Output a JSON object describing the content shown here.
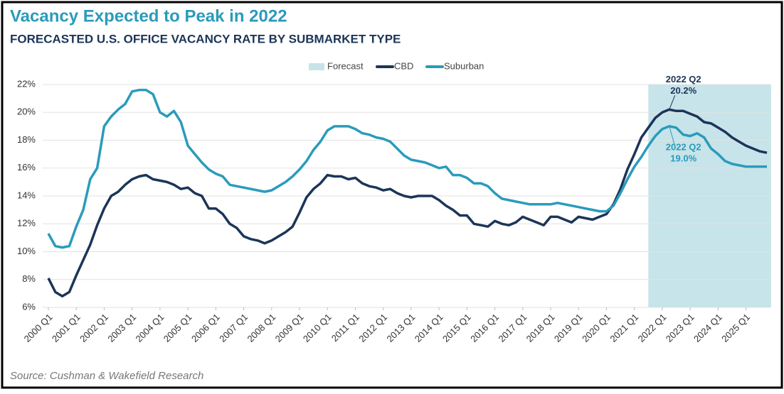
{
  "chart_data": {
    "type": "line",
    "title": "Vacancy Expected to Peak in 2022",
    "subtitle": "FORECASTED U.S. OFFICE VACANCY RATE BY SUBMARKET TYPE",
    "source": "Source: Cushman & Wakefield Research",
    "legend": "top",
    "grid": true,
    "forecast": {
      "name": "Forecast",
      "color": "#c6e4ea",
      "range": [
        2021.5,
        2025.9
      ]
    },
    "x": [
      2000,
      2000.25,
      2000.5,
      2000.75,
      2001,
      2001.25,
      2001.5,
      2001.75,
      2002,
      2002.25,
      2002.5,
      2002.75,
      2003,
      2003.25,
      2003.5,
      2003.75,
      2004,
      2004.25,
      2004.5,
      2004.75,
      2005,
      2005.25,
      2005.5,
      2005.75,
      2006,
      2006.25,
      2006.5,
      2006.75,
      2007,
      2007.25,
      2007.5,
      2007.75,
      2008,
      2008.25,
      2008.5,
      2008.75,
      2009,
      2009.25,
      2009.5,
      2009.75,
      2010,
      2010.25,
      2010.5,
      2010.75,
      2011,
      2011.25,
      2011.5,
      2011.75,
      2012,
      2012.25,
      2012.5,
      2012.75,
      2013,
      2013.25,
      2013.5,
      2013.75,
      2014,
      2014.25,
      2014.5,
      2014.75,
      2015,
      2015.25,
      2015.5,
      2015.75,
      2016,
      2016.25,
      2016.5,
      2016.75,
      2017,
      2017.25,
      2017.5,
      2017.75,
      2018,
      2018.25,
      2018.5,
      2018.75,
      2019,
      2019.25,
      2019.5,
      2019.75,
      2020,
      2020.25,
      2020.5,
      2020.75,
      2021,
      2021.25,
      2021.5,
      2021.75,
      2022,
      2022.25,
      2022.5,
      2022.75,
      2023,
      2023.25,
      2023.5,
      2023.75,
      2024,
      2024.25,
      2024.5,
      2024.75,
      2025,
      2025.25,
      2025.5,
      2025.75
    ],
    "xlim": [
      2000,
      2025.75
    ],
    "xticks": [
      {
        "value": 2000,
        "label": "2000 Q1"
      },
      {
        "value": 2001,
        "label": "2001 Q1"
      },
      {
        "value": 2002,
        "label": "2002 Q1"
      },
      {
        "value": 2003,
        "label": "2003 Q1"
      },
      {
        "value": 2004,
        "label": "2004 Q1"
      },
      {
        "value": 2005,
        "label": "2005 Q1"
      },
      {
        "value": 2006,
        "label": "2006 Q1"
      },
      {
        "value": 2007,
        "label": "2007 Q1"
      },
      {
        "value": 2008,
        "label": "2008 Q1"
      },
      {
        "value": 2009,
        "label": "2009 Q1"
      },
      {
        "value": 2010,
        "label": "2010 Q1"
      },
      {
        "value": 2011,
        "label": "2011 Q1"
      },
      {
        "value": 2012,
        "label": "2012 Q1"
      },
      {
        "value": 2013,
        "label": "2013 Q1"
      },
      {
        "value": 2014,
        "label": "2014 Q1"
      },
      {
        "value": 2015,
        "label": "2015 Q1"
      },
      {
        "value": 2016,
        "label": "2016 Q1"
      },
      {
        "value": 2017,
        "label": "2017 Q1"
      },
      {
        "value": 2018,
        "label": "2018 Q1"
      },
      {
        "value": 2019,
        "label": "2019 Q1"
      },
      {
        "value": 2020,
        "label": "2020 Q1"
      },
      {
        "value": 2021,
        "label": "2021 Q1"
      },
      {
        "value": 2022,
        "label": "2022 Q1"
      },
      {
        "value": 2023,
        "label": "2023 Q1"
      },
      {
        "value": 2024,
        "label": "2024 Q1"
      },
      {
        "value": 2025,
        "label": "2025 Q1"
      }
    ],
    "ylim": [
      6,
      22
    ],
    "yticks": [
      {
        "value": 6,
        "label": "6%"
      },
      {
        "value": 8,
        "label": "8%"
      },
      {
        "value": 10,
        "label": "10%"
      },
      {
        "value": 12,
        "label": "12%"
      },
      {
        "value": 14,
        "label": "14%"
      },
      {
        "value": 16,
        "label": "16%"
      },
      {
        "value": 18,
        "label": "18%"
      },
      {
        "value": 20,
        "label": "20%"
      },
      {
        "value": 22,
        "label": "22%"
      }
    ],
    "series": [
      {
        "name": "CBD",
        "color": "#1b3558",
        "values": [
          8.1,
          7.1,
          6.8,
          7.1,
          8.3,
          9.4,
          10.5,
          11.9,
          13.1,
          14.0,
          14.3,
          14.8,
          15.2,
          15.4,
          15.5,
          15.2,
          15.1,
          15.0,
          14.8,
          14.5,
          14.6,
          14.2,
          14.0,
          13.1,
          13.1,
          12.7,
          12.0,
          11.7,
          11.1,
          10.9,
          10.8,
          10.6,
          10.8,
          11.1,
          11.4,
          11.8,
          12.8,
          13.9,
          14.5,
          14.9,
          15.5,
          15.4,
          15.4,
          15.2,
          15.3,
          14.9,
          14.7,
          14.6,
          14.4,
          14.5,
          14.2,
          14.0,
          13.9,
          14.0,
          14.0,
          14.0,
          13.7,
          13.3,
          13.0,
          12.6,
          12.6,
          12.0,
          11.9,
          11.8,
          12.2,
          12.0,
          11.9,
          12.1,
          12.5,
          12.3,
          12.1,
          11.9,
          12.5,
          12.5,
          12.3,
          12.1,
          12.5,
          12.4,
          12.3,
          12.5,
          12.7,
          13.4,
          14.5,
          15.9,
          17.0,
          18.2,
          18.9,
          19.6,
          20.0,
          20.2,
          20.1,
          20.1,
          19.9,
          19.7,
          19.3,
          19.2,
          18.9,
          18.6,
          18.2,
          17.9,
          17.6,
          17.4,
          17.2,
          17.1
        ]
      },
      {
        "name": "Suburban",
        "color": "#2a9bbb",
        "values": [
          11.3,
          10.4,
          10.3,
          10.4,
          11.8,
          13.0,
          15.2,
          16.0,
          19.0,
          19.7,
          20.2,
          20.6,
          21.5,
          21.6,
          21.6,
          21.3,
          20.0,
          19.7,
          20.1,
          19.3,
          17.6,
          17.0,
          16.4,
          15.9,
          15.6,
          15.4,
          14.8,
          14.7,
          14.6,
          14.5,
          14.4,
          14.3,
          14.4,
          14.7,
          15.0,
          15.4,
          15.9,
          16.5,
          17.3,
          17.9,
          18.7,
          19.0,
          19.0,
          19.0,
          18.8,
          18.5,
          18.4,
          18.2,
          18.1,
          17.9,
          17.4,
          16.9,
          16.6,
          16.5,
          16.4,
          16.2,
          16.0,
          16.1,
          15.5,
          15.5,
          15.3,
          14.9,
          14.9,
          14.7,
          14.2,
          13.8,
          13.7,
          13.6,
          13.5,
          13.4,
          13.4,
          13.4,
          13.4,
          13.5,
          13.4,
          13.3,
          13.2,
          13.1,
          13.0,
          12.9,
          12.9,
          13.3,
          14.2,
          15.2,
          16.1,
          16.8,
          17.6,
          18.3,
          18.8,
          19.0,
          18.9,
          18.4,
          18.3,
          18.5,
          18.2,
          17.4,
          17.0,
          16.5,
          16.3,
          16.2,
          16.1,
          16.1,
          16.1,
          16.1
        ]
      }
    ],
    "annotations": [
      {
        "series": 0,
        "x": 2022.25,
        "y": 20.2,
        "label": "2022 Q2",
        "value_label": "20.2%"
      },
      {
        "series": 1,
        "x": 2022.25,
        "y": 19.0,
        "label": "2022 Q2",
        "value_label": "19.0%"
      }
    ]
  }
}
